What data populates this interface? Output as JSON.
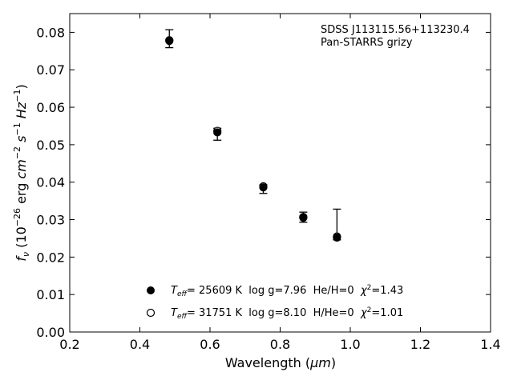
{
  "chart_data": {
    "type": "scatter",
    "annotation": {
      "line1": "SDSS J113115.56+113230.4",
      "line2": "Pan-STARRS grizy"
    },
    "xlabel": {
      "prefix": "Wavelength (",
      "unit": "μm",
      "suffix": ")"
    },
    "ylabel": {
      "f": "f",
      "f_sub": "ν",
      "p1": " (10",
      "p1_sup": "−26",
      "p2": " erg ",
      "cm": "cm",
      "cm_sup": "−2",
      "s": "s",
      "s_sup": "−1",
      "hz": "Hz",
      "hz_sup": "−1",
      "close": ")"
    },
    "xlim": [
      0.2,
      1.4
    ],
    "ylim": [
      0.0,
      0.085
    ],
    "xticks": [
      "0.2",
      "0.4",
      "0.6",
      "0.8",
      "1.0",
      "1.2",
      "1.4"
    ],
    "yticks": [
      "0.00",
      "0.01",
      "0.02",
      "0.03",
      "0.04",
      "0.05",
      "0.06",
      "0.07",
      "0.08"
    ],
    "grid": false,
    "legend_position": "lower-center",
    "observed": {
      "x": [
        0.484,
        0.621,
        0.752,
        0.866,
        0.962
      ],
      "y": [
        0.0777,
        0.0532,
        0.0385,
        0.0303,
        0.0251
      ],
      "err_lo": [
        0.0018,
        0.002,
        0.0015,
        0.001,
        0.0005
      ],
      "err_hi": [
        0.003,
        0.0012,
        0.0008,
        0.0017,
        0.0077
      ]
    },
    "series": [
      {
        "marker": "filled-circle",
        "legend": {
          "t": "T",
          "t_sub": "eff",
          "text": "= 25609 K  log g=7.96  He/H=0  ",
          "chi": "χ",
          "chi_sup": "2",
          "chi_val": "=1.43"
        },
        "x": [
          0.484,
          0.621,
          0.752,
          0.866,
          0.962
        ],
        "y": [
          0.0777,
          0.0533,
          0.0386,
          0.0305,
          0.0252
        ]
      },
      {
        "marker": "open-circle",
        "legend": {
          "t": "T",
          "t_sub": "eff",
          "text": "= 31751 K  log g=8.10  H/He=0  ",
          "chi": "χ",
          "chi_sup": "2",
          "chi_val": "=1.01"
        },
        "x": [
          0.484,
          0.621,
          0.752,
          0.866,
          0.962
        ],
        "y": [
          0.0779,
          0.0537,
          0.0389,
          0.0307,
          0.0255
        ]
      }
    ]
  }
}
